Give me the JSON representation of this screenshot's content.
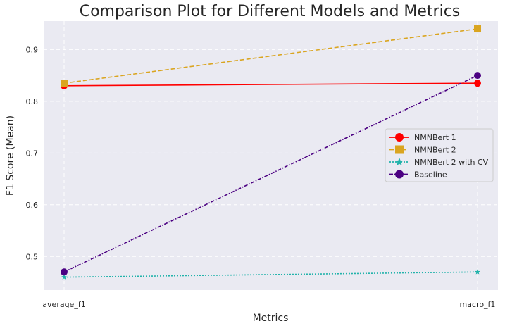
{
  "chart_data": {
    "type": "line",
    "title": "Comparison Plot for Different Models and Metrics",
    "xlabel": "Metrics",
    "ylabel": "F1 Score (Mean)",
    "categories": [
      "average_f1",
      "macro_f1"
    ],
    "ylim": [
      0.435,
      0.955
    ],
    "yticks": [
      "0.5",
      "0.6",
      "0.7",
      "0.8",
      "0.9"
    ],
    "grid": true,
    "legend_position": "center-right",
    "series": [
      {
        "name": "NMNBert 1",
        "values": [
          0.83,
          0.835
        ],
        "color": "#ff0000",
        "marker": "circle",
        "linestyle": "solid"
      },
      {
        "name": "NMNBert 2",
        "values": [
          0.835,
          0.94
        ],
        "color": "#daa520",
        "marker": "square",
        "linestyle": "dashed"
      },
      {
        "name": "NMNBert 2 with CV",
        "values": [
          0.46,
          0.47
        ],
        "color": "#20b2aa",
        "marker": "star",
        "linestyle": "dotted"
      },
      {
        "name": "Baseline",
        "values": [
          0.47,
          0.85
        ],
        "color": "#4b0082",
        "marker": "circle",
        "linestyle": "dashdot"
      }
    ]
  }
}
